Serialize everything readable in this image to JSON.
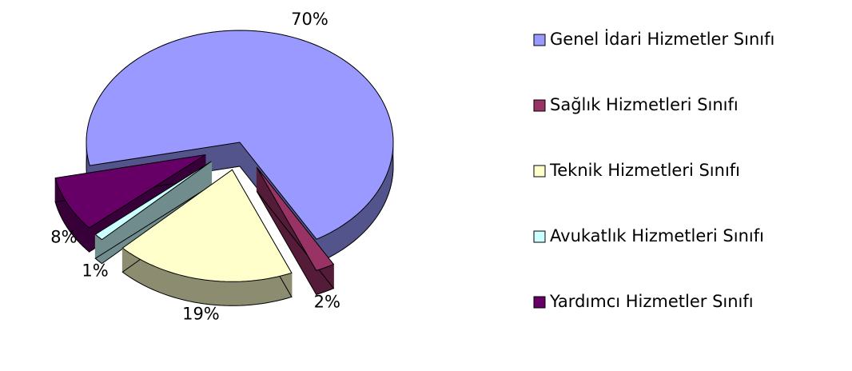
{
  "chart_data": {
    "type": "pie",
    "categories": [
      "Genel İdari Hizmetler Sınıfı",
      "Sağlık Hizmetleri Sınıfı",
      "Teknik Hizmetleri Sınıfı",
      "Avukatlık Hizmetleri Sınıfı",
      "Yardımcı Hizmetler Sınıfı"
    ],
    "values": [
      70,
      2,
      19,
      1,
      8
    ],
    "value_labels": [
      "70%",
      "2%",
      "19%",
      "1%",
      "8%"
    ],
    "colors": [
      "#9999ff",
      "#993366",
      "#ffffcc",
      "#ccffff",
      "#660066"
    ],
    "legend": "right"
  }
}
